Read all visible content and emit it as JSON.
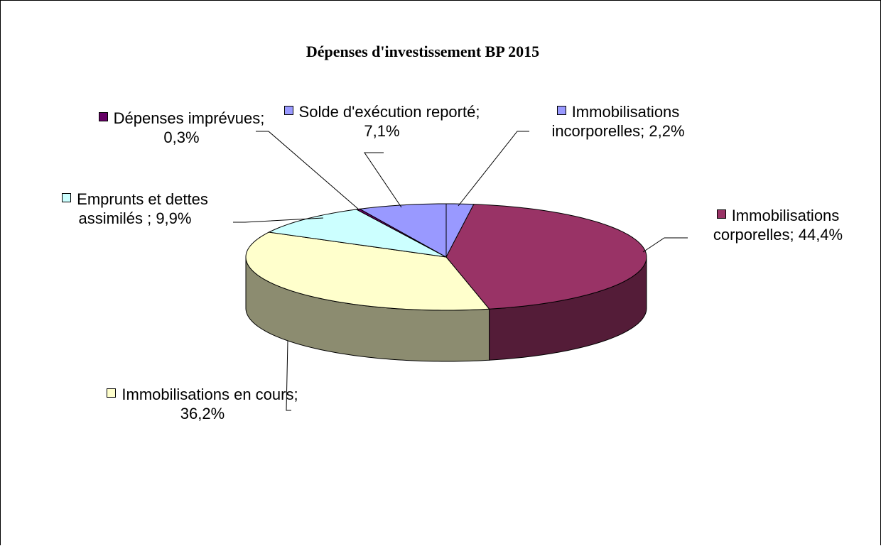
{
  "chart_data": {
    "type": "pie3d",
    "title": "Dépenses d'investissement BP 2015",
    "categories": [
      "Immobilisations incorporelles",
      "Immobilisations corporelles",
      "Immobilisations en cours",
      "Emprunts et dettes assimilés",
      "Dépenses imprévues",
      "Solde d'exécution reporté"
    ],
    "values": [
      2.2,
      44.4,
      36.2,
      9.9,
      0.3,
      7.1
    ],
    "value_labels": [
      "; 2,2%",
      "; 44,4%",
      "; 36,2%",
      " ; 9,9%",
      "; 0,3%",
      "; 7,1%"
    ],
    "colors": [
      "#9999ff",
      "#993366",
      "#ffffcc",
      "#ccffff",
      "#660066",
      "#9999ff"
    ]
  }
}
